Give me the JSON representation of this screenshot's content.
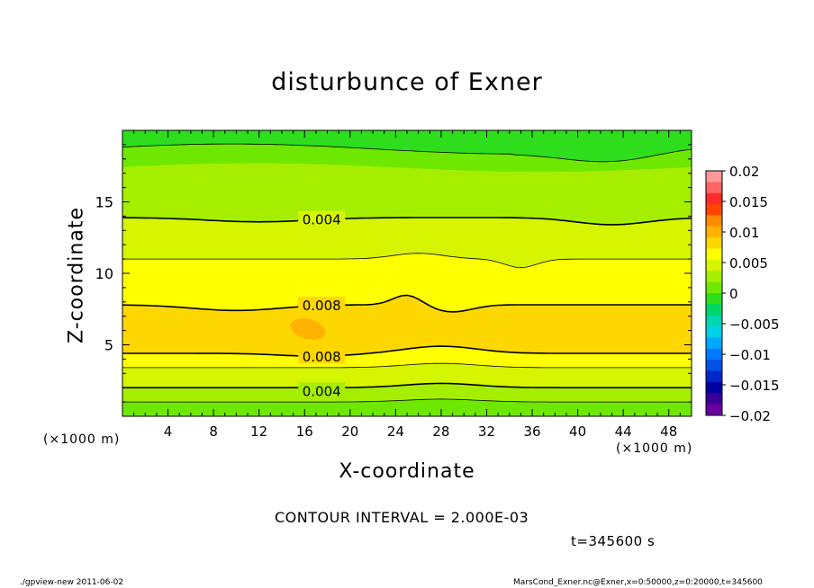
{
  "chart_data": {
    "type": "heatmap",
    "title": "disturbunce of Exner",
    "xlabel": "X-coordinate",
    "ylabel": "Z-coordinate",
    "x_unit_label": "(×1000 m)",
    "xlim": [
      0,
      50
    ],
    "ylim": [
      0,
      20
    ],
    "x_ticks": [
      4,
      8,
      12,
      16,
      20,
      24,
      28,
      32,
      36,
      40,
      44,
      48
    ],
    "y_ticks": [
      5,
      10,
      15
    ],
    "colorbar": {
      "ticks": [
        0.02,
        0.015,
        0.01,
        0.005,
        0,
        -0.005,
        -0.01,
        -0.015,
        -0.02
      ],
      "tick_labels": [
        "0.02",
        "0.015",
        "0.01",
        "0.005",
        "0",
        "−0.005",
        "−0.01",
        "−0.015",
        "−0.02"
      ],
      "colors_top_to_bottom": [
        "#ff9999",
        "#ff6666",
        "#ff2a2a",
        "#ff4500",
        "#ff8c00",
        "#ffb300",
        "#ffd700",
        "#ffff00",
        "#d6f500",
        "#a6ee00",
        "#6ee800",
        "#2ede1c",
        "#00d66a",
        "#00d6b0",
        "#00d0e8",
        "#00a8ff",
        "#0078ff",
        "#0050e8",
        "#0028c8",
        "#0000a0",
        "#3a0098",
        "#6a00a0"
      ]
    },
    "contour_labels": [
      {
        "x": 17.5,
        "z": 13.8,
        "text": "0.004"
      },
      {
        "x": 17.5,
        "z": 7.8,
        "text": "0.008"
      },
      {
        "x": 17.5,
        "z": 4.2,
        "text": "0.008"
      },
      {
        "x": 17.5,
        "z": 1.8,
        "text": "0.004"
      }
    ],
    "contour_interval_text": "CONTOUR INTERVAL = 2.000E-03",
    "time_text": "t=345600 s"
  },
  "footer": {
    "left": "./gpview-new   2011-06-02",
    "right": "MarsCond_Exner.nc@Exner,x=0:50000,z=0:20000,t=345600"
  }
}
